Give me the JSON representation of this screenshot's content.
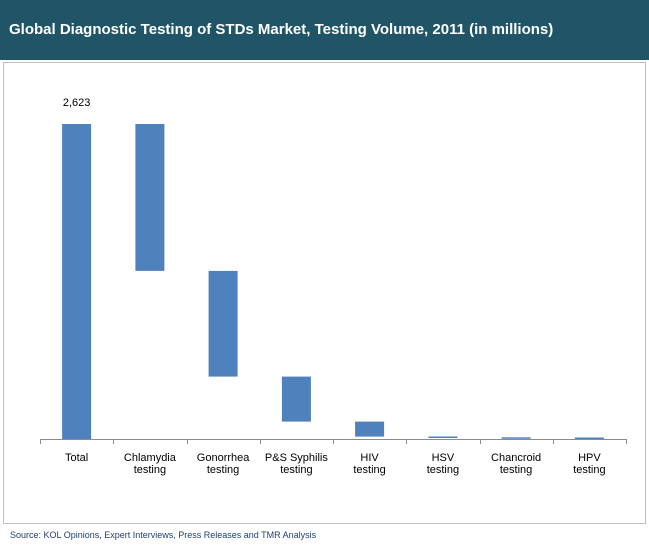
{
  "header": {
    "title": "Global Diagnostic Testing of STDs Market, Testing Volume, 2011 (in millions)"
  },
  "footer": {
    "source": "Source: KOL Opinions, Expert Interviews, Press Releases and TMR Analysis"
  },
  "colors": {
    "header_bg": "#1f5567",
    "bar": "#4f81bd",
    "source_text": "#1f3f6e"
  },
  "chart_data": {
    "type": "bar",
    "subtype": "waterfall",
    "title": "Global Diagnostic Testing of STDs Market, Testing Volume, 2011 (in millions)",
    "xlabel": "",
    "ylabel": "",
    "grid": false,
    "legend": "none",
    "ylim": [
      0,
      2623
    ],
    "categories": [
      [
        "Total"
      ],
      [
        "Chlamydia",
        "testing"
      ],
      [
        "Gonorrhea",
        "testing"
      ],
      [
        "P&S Syphilis",
        "testing"
      ],
      [
        "HIV",
        "testing"
      ],
      [
        "HSV",
        "testing"
      ],
      [
        "Chancroid",
        "testing"
      ],
      [
        "HPV",
        "testing"
      ]
    ],
    "bars": [
      {
        "base": 0,
        "top": 2623
      },
      {
        "base": 1400,
        "top": 2623
      },
      {
        "base": 520,
        "top": 1400
      },
      {
        "base": 145,
        "top": 520
      },
      {
        "base": 20,
        "top": 145
      },
      {
        "base": 8,
        "top": 20
      },
      {
        "base": 2,
        "top": 8
      },
      {
        "base": 0,
        "top": 2
      }
    ],
    "data_labels": [
      {
        "index": 0,
        "text": "2,623"
      }
    ]
  }
}
